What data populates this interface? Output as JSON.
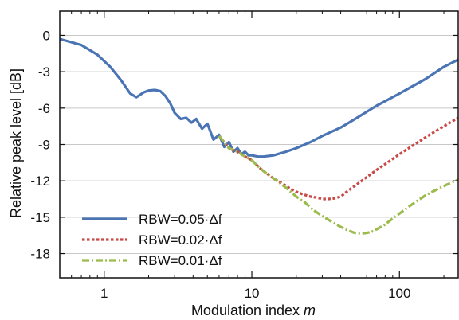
{
  "chart_data": {
    "type": "line",
    "title": "",
    "xlabel": "Modulation index",
    "xlabel_var": "m",
    "ylabel": "Relative peak level [dB]",
    "x_scale": "log",
    "xlim": [
      0.5,
      250
    ],
    "ylim": [
      -20,
      2
    ],
    "x_ticks": [
      1,
      10,
      100
    ],
    "x_tick_labels": [
      "1",
      "10",
      "100"
    ],
    "y_ticks": [
      0,
      -3,
      -6,
      -9,
      -12,
      -15,
      -18
    ],
    "y_tick_labels": [
      "0",
      "-3",
      "-6",
      "-9",
      "-12",
      "-15",
      "-18"
    ],
    "grid": "horizontal",
    "legend_position": "bottom-left",
    "series": [
      {
        "name": "RBW=0.05·Δf",
        "color": "#4a74b4",
        "style": "solid",
        "x": [
          0.5,
          0.7,
          0.9,
          1.1,
          1.3,
          1.5,
          1.65,
          1.75,
          1.85,
          2.0,
          2.2,
          2.4,
          2.6,
          2.8,
          3.0,
          3.3,
          3.6,
          3.9,
          4.2,
          4.6,
          5.0,
          5.5,
          6.0,
          6.5,
          7.0,
          7.5,
          8.0,
          8.5,
          9.0,
          9.5,
          10.0,
          11.0,
          12.0,
          14.0,
          17.0,
          20.0,
          25.0,
          30.0,
          40.0,
          50.0,
          70.0,
          100.0,
          150.0,
          200.0,
          250.0
        ],
        "y": [
          -0.3,
          -0.8,
          -1.6,
          -2.6,
          -3.7,
          -4.8,
          -5.1,
          -4.9,
          -4.7,
          -4.55,
          -4.5,
          -4.6,
          -5.0,
          -5.6,
          -6.4,
          -6.9,
          -6.8,
          -7.2,
          -6.9,
          -7.7,
          -7.3,
          -8.6,
          -8.2,
          -9.2,
          -8.8,
          -9.6,
          -9.3,
          -9.8,
          -9.6,
          -9.9,
          -9.9,
          -10.0,
          -10.0,
          -9.9,
          -9.6,
          -9.3,
          -8.8,
          -8.3,
          -7.6,
          -6.9,
          -5.8,
          -4.8,
          -3.6,
          -2.6,
          -2.0
        ]
      },
      {
        "name": "RBW=0.02·Δf",
        "color": "#c84a48",
        "style": "dotted",
        "x": [
          6.0,
          7.0,
          8.0,
          9.0,
          10.0,
          11.0,
          12.0,
          13.0,
          14.0,
          16.0,
          18.0,
          20.0,
          22.0,
          25.0,
          28.0,
          30.0,
          33.0,
          36.0,
          40.0,
          45.0,
          50.0,
          60.0,
          70.0,
          85.0,
          100.0,
          130.0,
          160.0,
          200.0,
          250.0
        ],
        "y": [
          -8.3,
          -9.3,
          -9.6,
          -10.0,
          -10.3,
          -10.8,
          -11.2,
          -11.5,
          -11.8,
          -12.2,
          -12.6,
          -12.9,
          -13.1,
          -13.3,
          -13.4,
          -13.5,
          -13.5,
          -13.45,
          -13.3,
          -12.8,
          -12.4,
          -11.7,
          -11.1,
          -10.4,
          -9.8,
          -8.9,
          -8.2,
          -7.5,
          -6.8
        ]
      },
      {
        "name": "RBW=0.01·Δf",
        "color": "#9bbb4c",
        "style": "dashdot",
        "x": [
          6.0,
          7.0,
          8.0,
          9.0,
          10.0,
          11.0,
          12.0,
          13.0,
          14.0,
          16.0,
          18.0,
          20.0,
          23.0,
          26.0,
          30.0,
          35.0,
          40.0,
          45.0,
          50.0,
          55.0,
          60.0,
          65.0,
          70.0,
          80.0,
          90.0,
          100.0,
          120.0,
          150.0,
          180.0,
          210.0,
          250.0
        ],
        "y": [
          -8.3,
          -9.3,
          -9.6,
          -10.0,
          -10.3,
          -10.8,
          -11.2,
          -11.5,
          -11.8,
          -12.3,
          -12.8,
          -13.3,
          -13.8,
          -14.4,
          -14.9,
          -15.4,
          -15.8,
          -16.1,
          -16.3,
          -16.35,
          -16.3,
          -16.2,
          -16.0,
          -15.6,
          -15.1,
          -14.7,
          -14.0,
          -13.2,
          -12.7,
          -12.3,
          -11.9
        ]
      }
    ]
  }
}
